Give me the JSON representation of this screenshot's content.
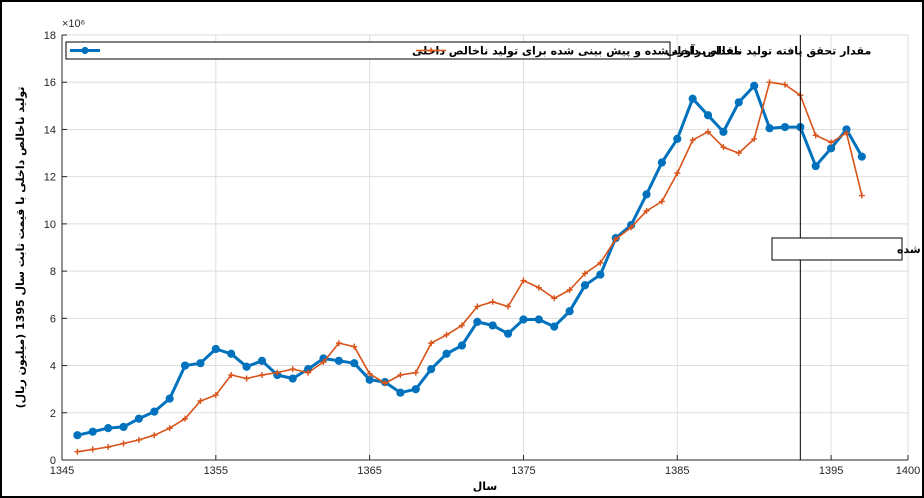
{
  "chart_data": {
    "type": "line",
    "xlabel": "سال",
    "ylabel": "تولید ناخالص داخلی با قیمت ثابت سال 1395 (میلیون ریال)",
    "exponent_label": "×10⁶",
    "xlim": [
      1345,
      1400
    ],
    "ylim": [
      0,
      18
    ],
    "xticks": [
      1345,
      1355,
      1365,
      1375,
      1385,
      1395,
      1400
    ],
    "yticks": [
      0,
      2,
      4,
      6,
      8,
      10,
      12,
      14,
      16,
      18
    ],
    "grid": true,
    "legend_position": "top-left",
    "annotation": {
      "text": "مقادیر پیش بینی شده",
      "x_line": 1393
    },
    "series": [
      {
        "name": "مقدار برآورد شده و پیش بینی شده برای تولید ناخالص داخلی",
        "color": "#0072BD",
        "marker": "circle",
        "x": [
          1346,
          1347,
          1348,
          1349,
          1350,
          1351,
          1352,
          1353,
          1354,
          1355,
          1356,
          1357,
          1358,
          1359,
          1360,
          1361,
          1362,
          1363,
          1364,
          1365,
          1366,
          1367,
          1368,
          1369,
          1370,
          1371,
          1372,
          1373,
          1374,
          1375,
          1376,
          1377,
          1378,
          1379,
          1380,
          1381,
          1382,
          1383,
          1384,
          1385,
          1386,
          1387,
          1388,
          1389,
          1390,
          1391,
          1392,
          1393,
          1394,
          1395,
          1396,
          1397
        ],
        "values": [
          1.05,
          1.2,
          1.35,
          1.4,
          1.75,
          2.05,
          2.6,
          4.0,
          4.1,
          4.7,
          4.5,
          3.95,
          4.2,
          3.6,
          3.45,
          3.85,
          4.3,
          4.2,
          4.1,
          3.4,
          3.3,
          2.85,
          3.0,
          3.85,
          4.5,
          4.85,
          5.85,
          5.7,
          5.35,
          5.95,
          5.95,
          5.65,
          6.3,
          7.4,
          7.85,
          9.4,
          9.95,
          11.25,
          12.6,
          13.6,
          15.3,
          14.6,
          13.9,
          15.15,
          15.85,
          14.05,
          14.1,
          14.1,
          12.45,
          13.2,
          14.0,
          12.85
        ]
      },
      {
        "name": "مقدار تحقق یافته تولید ناخالص داخلی",
        "color": "#D95319",
        "marker": "plus",
        "x": [
          1346,
          1347,
          1348,
          1349,
          1350,
          1351,
          1352,
          1353,
          1354,
          1355,
          1356,
          1357,
          1358,
          1359,
          1360,
          1361,
          1362,
          1363,
          1364,
          1365,
          1366,
          1367,
          1368,
          1369,
          1370,
          1371,
          1372,
          1373,
          1374,
          1375,
          1376,
          1377,
          1378,
          1379,
          1380,
          1381,
          1382,
          1383,
          1384,
          1385,
          1386,
          1387,
          1388,
          1389,
          1390,
          1391,
          1392,
          1393,
          1394,
          1395,
          1396,
          1397
        ],
        "values": [
          0.35,
          0.45,
          0.55,
          0.7,
          0.85,
          1.05,
          1.35,
          1.75,
          2.5,
          2.75,
          3.6,
          3.45,
          3.6,
          3.7,
          3.85,
          3.7,
          4.15,
          4.95,
          4.8,
          3.65,
          3.25,
          3.6,
          3.7,
          4.95,
          5.3,
          5.7,
          6.5,
          6.7,
          6.5,
          7.6,
          7.3,
          6.85,
          7.2,
          7.9,
          8.35,
          9.35,
          9.85,
          10.55,
          10.95,
          12.15,
          13.55,
          13.9,
          13.25,
          13.0,
          13.6,
          16.0,
          15.9,
          15.45,
          13.75,
          13.45,
          13.85,
          11.2
        ]
      }
    ]
  }
}
